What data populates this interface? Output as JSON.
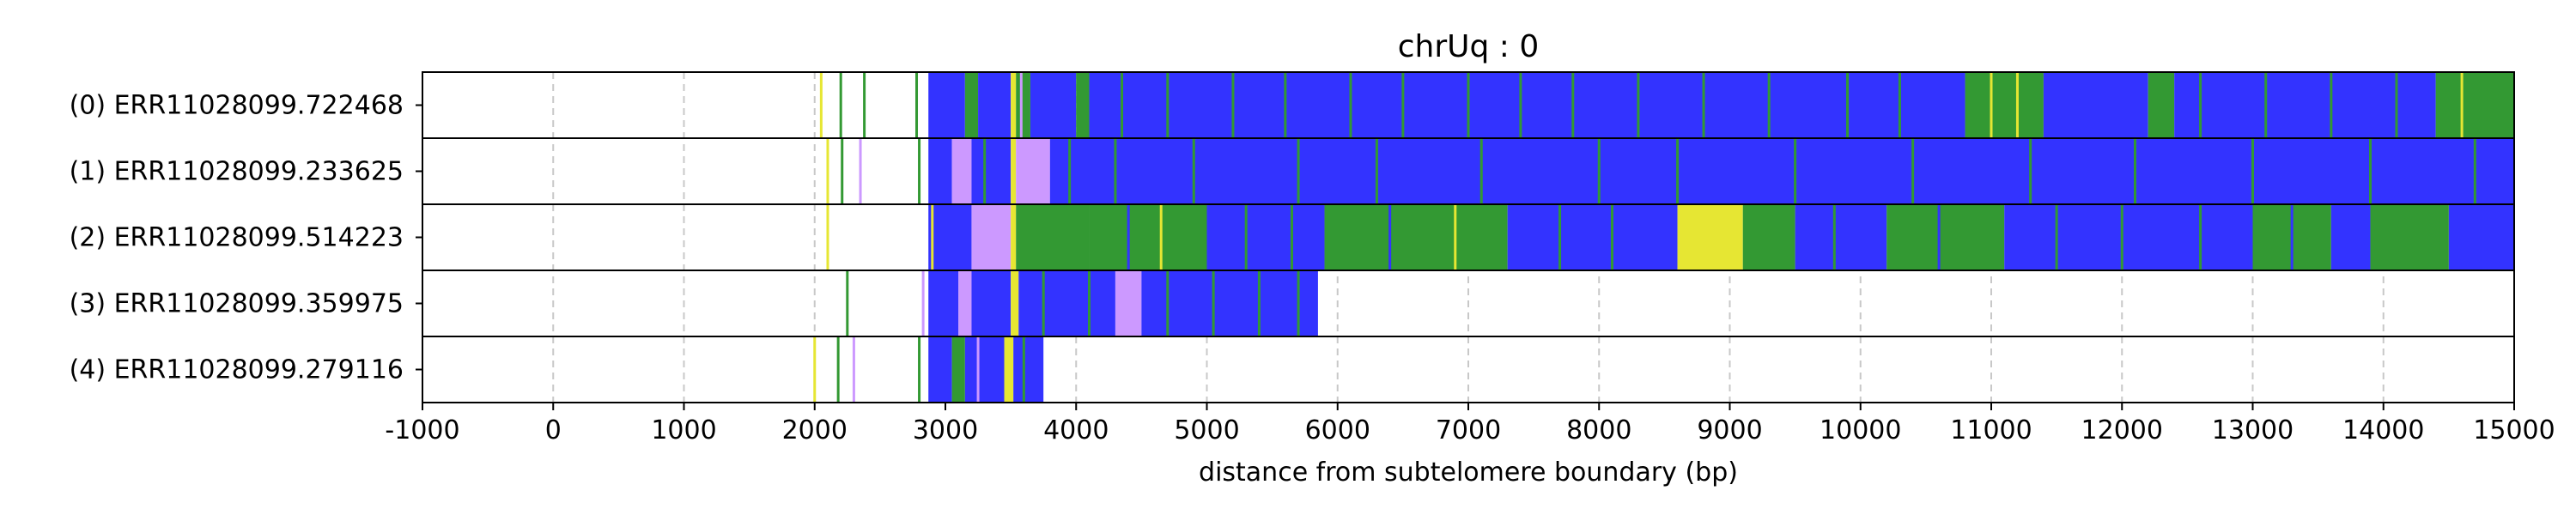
{
  "chart_data": {
    "type": "read-track",
    "title": "chrUq : 0",
    "xlabel": "distance from subtelomere boundary (bp)",
    "ylabel": "",
    "xlim": [
      -1000,
      15000
    ],
    "xticks": [
      -1000,
      0,
      1000,
      2000,
      3000,
      4000,
      5000,
      6000,
      7000,
      8000,
      9000,
      10000,
      11000,
      12000,
      13000,
      14000,
      15000
    ],
    "xtick_labels": [
      "-1000",
      "0",
      "1000",
      "2000",
      "3000",
      "4000",
      "5000",
      "6000",
      "7000",
      "8000",
      "9000",
      "10000",
      "11000",
      "12000",
      "13000",
      "14000",
      "15000"
    ],
    "grid": "vertical dashed",
    "colors": {
      "blue": "#3333ff",
      "green": "#339933",
      "yellow": "#e6e633",
      "purple": "#cc99ff",
      "grid": "#c8c8c8",
      "frame": "#000000"
    },
    "rows": [
      {
        "label": "(0) ERR11028099.722468",
        "segments": [
          {
            "start": 2870,
            "end": 3150,
            "color": "blue"
          },
          {
            "start": 3150,
            "end": 3250,
            "color": "green"
          },
          {
            "start": 3250,
            "end": 3500,
            "color": "blue"
          },
          {
            "start": 3500,
            "end": 3540,
            "color": "yellow"
          },
          {
            "start": 3540,
            "end": 3650,
            "color": "green"
          },
          {
            "start": 3650,
            "end": 4000,
            "color": "blue"
          },
          {
            "start": 4000,
            "end": 4100,
            "color": "green"
          },
          {
            "start": 4100,
            "end": 10800,
            "color": "blue"
          },
          {
            "start": 10800,
            "end": 11400,
            "color": "green"
          },
          {
            "start": 11400,
            "end": 12200,
            "color": "blue"
          },
          {
            "start": 12200,
            "end": 12400,
            "color": "green"
          },
          {
            "start": 12400,
            "end": 14400,
            "color": "blue"
          },
          {
            "start": 14400,
            "end": 15000,
            "color": "green"
          }
        ],
        "stripes": [
          {
            "x": 2050,
            "color": "yellow"
          },
          {
            "x": 2200,
            "color": "green"
          },
          {
            "x": 2380,
            "color": "green"
          },
          {
            "x": 2780,
            "color": "green"
          },
          {
            "x": 3580,
            "color": "purple"
          },
          {
            "x": 4350,
            "color": "green"
          },
          {
            "x": 4700,
            "color": "green"
          },
          {
            "x": 5200,
            "color": "green"
          },
          {
            "x": 5600,
            "color": "green"
          },
          {
            "x": 6100,
            "color": "green"
          },
          {
            "x": 6500,
            "color": "green"
          },
          {
            "x": 7000,
            "color": "green"
          },
          {
            "x": 7400,
            "color": "green"
          },
          {
            "x": 7800,
            "color": "green"
          },
          {
            "x": 8300,
            "color": "green"
          },
          {
            "x": 8800,
            "color": "green"
          },
          {
            "x": 9300,
            "color": "green"
          },
          {
            "x": 9900,
            "color": "green"
          },
          {
            "x": 10300,
            "color": "green"
          },
          {
            "x": 11000,
            "color": "yellow"
          },
          {
            "x": 11200,
            "color": "yellow"
          },
          {
            "x": 12600,
            "color": "green"
          },
          {
            "x": 13100,
            "color": "green"
          },
          {
            "x": 13600,
            "color": "green"
          },
          {
            "x": 14100,
            "color": "green"
          },
          {
            "x": 14600,
            "color": "yellow"
          }
        ]
      },
      {
        "label": "(1) ERR11028099.233625",
        "segments": [
          {
            "start": 2870,
            "end": 3050,
            "color": "blue"
          },
          {
            "start": 3050,
            "end": 3200,
            "color": "purple"
          },
          {
            "start": 3200,
            "end": 3500,
            "color": "blue"
          },
          {
            "start": 3500,
            "end": 3540,
            "color": "yellow"
          },
          {
            "start": 3540,
            "end": 3800,
            "color": "purple"
          },
          {
            "start": 3800,
            "end": 15000,
            "color": "blue"
          }
        ],
        "stripes": [
          {
            "x": 2100,
            "color": "yellow"
          },
          {
            "x": 2210,
            "color": "green"
          },
          {
            "x": 2350,
            "color": "purple"
          },
          {
            "x": 2800,
            "color": "green"
          },
          {
            "x": 3300,
            "color": "green"
          },
          {
            "x": 3950,
            "color": "green"
          },
          {
            "x": 4300,
            "color": "green"
          },
          {
            "x": 4900,
            "color": "green"
          },
          {
            "x": 5700,
            "color": "green"
          },
          {
            "x": 6300,
            "color": "green"
          },
          {
            "x": 7100,
            "color": "green"
          },
          {
            "x": 8000,
            "color": "green"
          },
          {
            "x": 8600,
            "color": "green"
          },
          {
            "x": 9500,
            "color": "green"
          },
          {
            "x": 10400,
            "color": "green"
          },
          {
            "x": 11300,
            "color": "green"
          },
          {
            "x": 12100,
            "color": "green"
          },
          {
            "x": 13000,
            "color": "green"
          },
          {
            "x": 13900,
            "color": "green"
          },
          {
            "x": 14700,
            "color": "green"
          }
        ]
      },
      {
        "label": "(2) ERR11028099.514223",
        "segments": [
          {
            "start": 2870,
            "end": 3200,
            "color": "blue"
          },
          {
            "start": 3200,
            "end": 3500,
            "color": "purple"
          },
          {
            "start": 3500,
            "end": 3540,
            "color": "yellow"
          },
          {
            "start": 3540,
            "end": 4100,
            "color": "green"
          },
          {
            "start": 4100,
            "end": 5000,
            "color": "green"
          },
          {
            "start": 5000,
            "end": 5900,
            "color": "blue"
          },
          {
            "start": 5900,
            "end": 7300,
            "color": "green"
          },
          {
            "start": 7300,
            "end": 8600,
            "color": "blue"
          },
          {
            "start": 8600,
            "end": 9100,
            "color": "yellow"
          },
          {
            "start": 9100,
            "end": 9500,
            "color": "green"
          },
          {
            "start": 9500,
            "end": 10200,
            "color": "blue"
          },
          {
            "start": 10200,
            "end": 11100,
            "color": "green"
          },
          {
            "start": 11100,
            "end": 13000,
            "color": "blue"
          },
          {
            "start": 13000,
            "end": 13600,
            "color": "green"
          },
          {
            "start": 13600,
            "end": 13900,
            "color": "blue"
          },
          {
            "start": 13900,
            "end": 14500,
            "color": "green"
          },
          {
            "start": 14500,
            "end": 15000,
            "color": "blue"
          }
        ],
        "stripes": [
          {
            "x": 2100,
            "color": "yellow"
          },
          {
            "x": 2900,
            "color": "yellow"
          },
          {
            "x": 4400,
            "color": "blue"
          },
          {
            "x": 4650,
            "color": "yellow"
          },
          {
            "x": 5300,
            "color": "green"
          },
          {
            "x": 5650,
            "color": "green"
          },
          {
            "x": 6400,
            "color": "blue"
          },
          {
            "x": 6900,
            "color": "yellow"
          },
          {
            "x": 7700,
            "color": "green"
          },
          {
            "x": 8100,
            "color": "green"
          },
          {
            "x": 9800,
            "color": "green"
          },
          {
            "x": 10600,
            "color": "blue"
          },
          {
            "x": 11500,
            "color": "green"
          },
          {
            "x": 12000,
            "color": "green"
          },
          {
            "x": 12600,
            "color": "green"
          },
          {
            "x": 13300,
            "color": "blue"
          }
        ]
      },
      {
        "label": "(3) ERR11028099.359975",
        "segments": [
          {
            "start": 2870,
            "end": 3100,
            "color": "blue"
          },
          {
            "start": 3100,
            "end": 3200,
            "color": "purple"
          },
          {
            "start": 3200,
            "end": 3500,
            "color": "blue"
          },
          {
            "start": 3500,
            "end": 3560,
            "color": "yellow"
          },
          {
            "start": 3560,
            "end": 4300,
            "color": "blue"
          },
          {
            "start": 4300,
            "end": 4500,
            "color": "purple"
          },
          {
            "start": 4500,
            "end": 5850,
            "color": "blue"
          }
        ],
        "stripes": [
          {
            "x": 2250,
            "color": "green"
          },
          {
            "x": 2830,
            "color": "purple"
          },
          {
            "x": 3750,
            "color": "green"
          },
          {
            "x": 4100,
            "color": "green"
          },
          {
            "x": 4700,
            "color": "green"
          },
          {
            "x": 5050,
            "color": "green"
          },
          {
            "x": 5400,
            "color": "green"
          },
          {
            "x": 5700,
            "color": "green"
          }
        ]
      },
      {
        "label": "(4) ERR11028099.279116",
        "segments": [
          {
            "start": 2870,
            "end": 3050,
            "color": "blue"
          },
          {
            "start": 3050,
            "end": 3150,
            "color": "green"
          },
          {
            "start": 3150,
            "end": 3450,
            "color": "blue"
          },
          {
            "start": 3450,
            "end": 3520,
            "color": "yellow"
          },
          {
            "start": 3520,
            "end": 3750,
            "color": "blue"
          }
        ],
        "stripes": [
          {
            "x": 2000,
            "color": "yellow"
          },
          {
            "x": 2180,
            "color": "green"
          },
          {
            "x": 2300,
            "color": "purple"
          },
          {
            "x": 2800,
            "color": "green"
          },
          {
            "x": 3250,
            "color": "purple"
          },
          {
            "x": 3600,
            "color": "green"
          }
        ]
      }
    ]
  }
}
